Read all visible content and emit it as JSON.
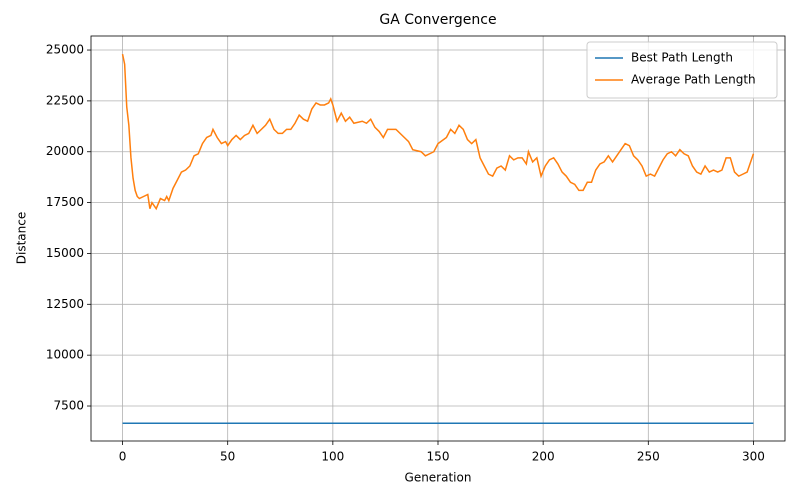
{
  "chart_data": {
    "type": "line",
    "title": "GA Convergence",
    "xlabel": "Generation",
    "ylabel": "Distance",
    "x": [
      0,
      1,
      2,
      3,
      4,
      5,
      6,
      7,
      8,
      10,
      12,
      13,
      14,
      16,
      18,
      20,
      21,
      22,
      24,
      26,
      28,
      30,
      32,
      34,
      36,
      38,
      40,
      42,
      43,
      45,
      47,
      49,
      50,
      52,
      54,
      56,
      58,
      60,
      62,
      64,
      66,
      68,
      70,
      72,
      74,
      76,
      78,
      80,
      82,
      84,
      86,
      88,
      90,
      92,
      94,
      96,
      98,
      99,
      100,
      102,
      104,
      106,
      108,
      110,
      114,
      116,
      118,
      120,
      122,
      124,
      126,
      130,
      134,
      136,
      138,
      142,
      144,
      148,
      150,
      154,
      156,
      158,
      160,
      162,
      164,
      166,
      168,
      170,
      172,
      174,
      176,
      178,
      180,
      182,
      184,
      186,
      188,
      190,
      192,
      193,
      195,
      197,
      199,
      201,
      203,
      205,
      207,
      209,
      211,
      213,
      215,
      217,
      219,
      221,
      223,
      225,
      227,
      229,
      231,
      233,
      235,
      237,
      239,
      241,
      243,
      245,
      247,
      249,
      251,
      253,
      255,
      257,
      259,
      261,
      263,
      265,
      267,
      269,
      271,
      273,
      275,
      277,
      279,
      281,
      283,
      285,
      287,
      289,
      291,
      293,
      295,
      297,
      300
    ],
    "series": [
      {
        "name": "Best Path Length",
        "color": "#1f77b4",
        "values": [
          6650,
          6650,
          6650,
          6650,
          6650,
          6650,
          6650,
          6650,
          6650,
          6650,
          6650,
          6650,
          6650,
          6650,
          6650,
          6650,
          6650,
          6650,
          6650,
          6650,
          6650,
          6650,
          6650,
          6650,
          6650,
          6650,
          6650,
          6650,
          6650,
          6650,
          6650,
          6650,
          6650,
          6650,
          6650,
          6650,
          6650,
          6650,
          6650,
          6650,
          6650,
          6650,
          6650,
          6650,
          6650,
          6650,
          6650,
          6650,
          6650,
          6650,
          6650,
          6650,
          6650,
          6650,
          6650,
          6650,
          6650,
          6650,
          6650,
          6650,
          6650,
          6650,
          6650,
          6650,
          6650,
          6650,
          6650,
          6650,
          6650,
          6650,
          6650,
          6650,
          6650,
          6650,
          6650,
          6650,
          6650,
          6650,
          6650,
          6650,
          6650,
          6650,
          6650,
          6650,
          6650,
          6650,
          6650,
          6650,
          6650,
          6650,
          6650,
          6650,
          6650,
          6650,
          6650,
          6650,
          6650,
          6650,
          6650,
          6650,
          6650,
          6650,
          6650,
          6650,
          6650,
          6650,
          6650,
          6650,
          6650,
          6650,
          6650,
          6650,
          6650,
          6650,
          6650,
          6650,
          6650,
          6650,
          6650,
          6650,
          6650,
          6650,
          6650,
          6650,
          6650,
          6650,
          6650,
          6650,
          6650,
          6650,
          6650,
          6650,
          6650,
          6650,
          6650,
          6650,
          6650,
          6650,
          6650,
          6650,
          6650,
          6650,
          6650,
          6650,
          6650,
          6650,
          6650,
          6650,
          6650,
          6650,
          6650,
          6650,
          6650
        ]
      },
      {
        "name": "Average Path Length",
        "color": "#ff7f0e",
        "values": [
          24800,
          24300,
          22200,
          21300,
          19700,
          18700,
          18100,
          17800,
          17700,
          17800,
          17900,
          17200,
          17500,
          17200,
          17700,
          17600,
          17800,
          17600,
          18200,
          18600,
          19000,
          19100,
          19300,
          19800,
          19900,
          20400,
          20700,
          20800,
          21100,
          20700,
          20400,
          20500,
          20300,
          20600,
          20800,
          20600,
          20800,
          20900,
          21300,
          20900,
          21100,
          21300,
          21600,
          21100,
          20900,
          20900,
          21100,
          21100,
          21400,
          21800,
          21600,
          21500,
          22100,
          22400,
          22300,
          22300,
          22400,
          22600,
          22300,
          21500,
          21900,
          21500,
          21700,
          21400,
          21500,
          21400,
          21600,
          21200,
          21000,
          20700,
          21100,
          21100,
          20700,
          20500,
          20100,
          20000,
          19800,
          20000,
          20400,
          20700,
          21100,
          20900,
          21300,
          21100,
          20600,
          20400,
          20600,
          19700,
          19300,
          18900,
          18800,
          19200,
          19300,
          19100,
          19800,
          19600,
          19700,
          19700,
          19400,
          20000,
          19500,
          19700,
          18800,
          19300,
          19600,
          19700,
          19400,
          19000,
          18800,
          18500,
          18400,
          18100,
          18100,
          18500,
          18500,
          19100,
          19400,
          19500,
          19800,
          19500,
          19800,
          20100,
          20400,
          20300,
          19800,
          19600,
          19300,
          18800,
          18900,
          18800,
          19200,
          19600,
          19900,
          20000,
          19800,
          20100,
          19900,
          19800,
          19300,
          19000,
          18900,
          19300,
          19000,
          19100,
          19000,
          19100,
          19700,
          19700,
          19000,
          18800,
          18900,
          19000,
          19900
        ]
      }
    ],
    "xlim": [
      -15,
      315
    ],
    "ylim": [
      5780,
      25690
    ],
    "xticks": [
      0,
      50,
      100,
      150,
      200,
      250,
      300
    ],
    "yticks": [
      7500,
      10000,
      12500,
      15000,
      17500,
      20000,
      22500,
      25000
    ],
    "grid": true,
    "legend": "upper right"
  }
}
